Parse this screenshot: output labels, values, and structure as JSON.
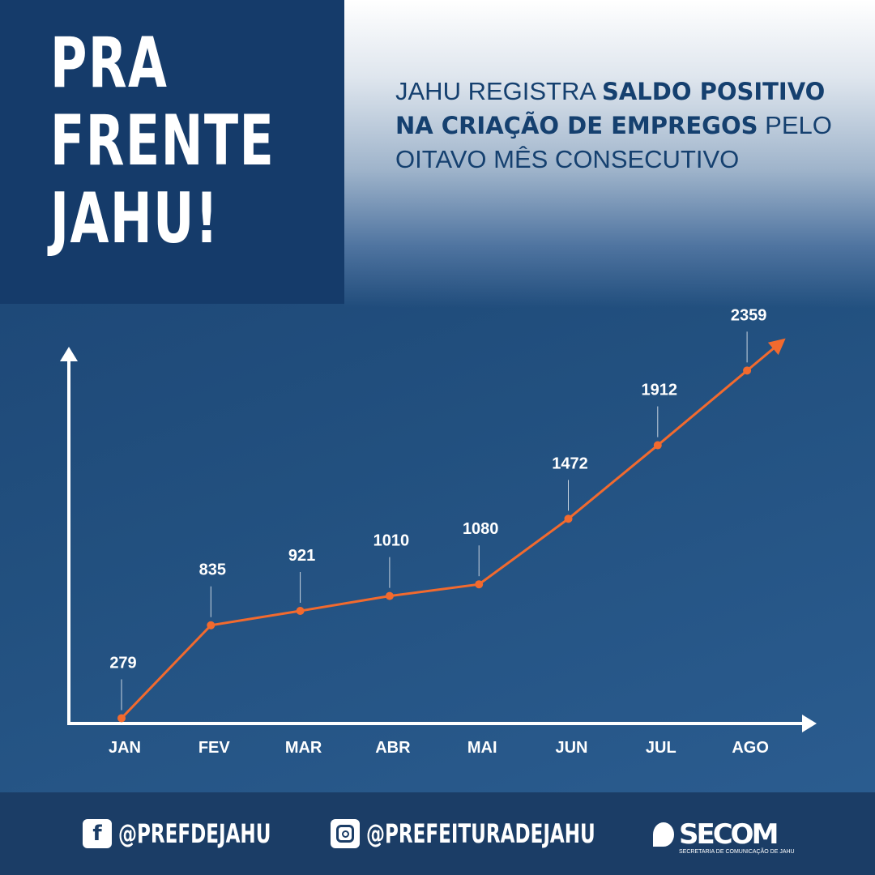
{
  "title_lines": [
    "PRA",
    "FRENTE",
    "JAHU!"
  ],
  "headline": {
    "part1": "JAHU REGISTRA ",
    "bold1": "SALDO POSITIVO NA CRIAÇÃO DE EMPREGOS",
    "part2": " PELO OITAVO MÊS CONSECUTIVO"
  },
  "chart_data": {
    "type": "line",
    "categories": [
      "JAN",
      "FEV",
      "MAR",
      "ABR",
      "MAI",
      "JUN",
      "JUL",
      "AGO"
    ],
    "values": [
      279,
      835,
      921,
      1010,
      1080,
      1472,
      1912,
      2359
    ],
    "data_labels": [
      "279",
      "835",
      "921",
      "1010",
      "1080",
      "1472",
      "1912",
      "2359"
    ],
    "line_color": "#f26a2e",
    "axis_color": "#ffffff",
    "grid": false
  },
  "footer": {
    "facebook": "@PREFDEJAHU",
    "instagram": "@PREFEITURADEJAHU",
    "logo_name": "SECOM",
    "logo_sub": "SECRETARIA DE COMUNICAÇÃO DE JAHU"
  }
}
